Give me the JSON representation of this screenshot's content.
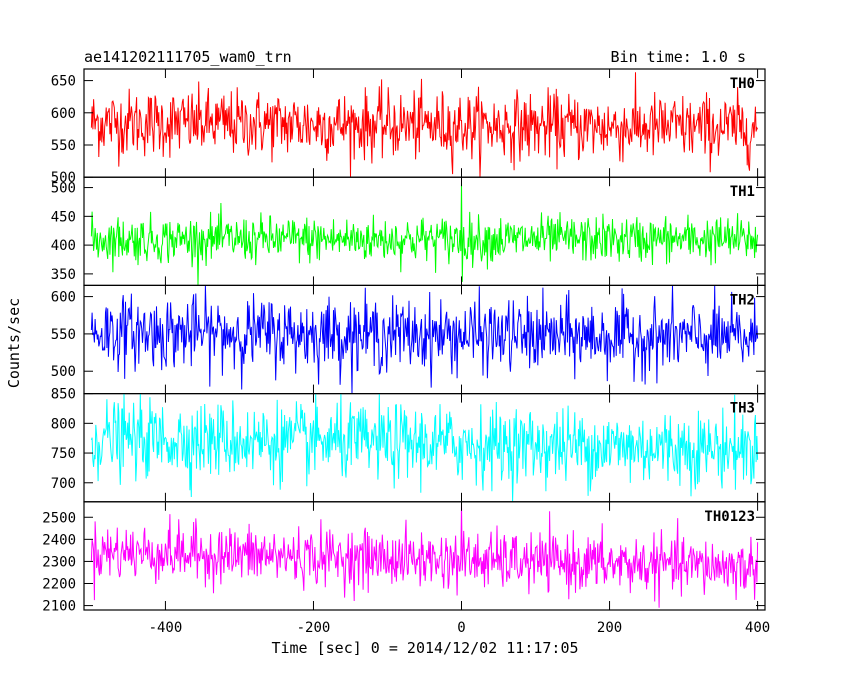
{
  "header": {
    "left_title": "ae141202111705_wam0_trn",
    "right_title": "Bin time: 1.0 s"
  },
  "chart_data": {
    "type": "line",
    "title": "ae141202111705_wam0_trn",
    "bin_time": "Bin time: 1.0 s",
    "xlabel": "Time [sec] 0 = 2014/12/02 11:17:05",
    "ylabel": "Counts/sec",
    "xlim": [
      -510,
      410
    ],
    "xticks": [
      -400,
      -200,
      0,
      200,
      400
    ],
    "x_data_range": [
      -500,
      400
    ],
    "bin_seconds": 1.0,
    "panels": [
      {
        "name": "TH0",
        "color": "#ff0000",
        "ylim": [
          500,
          668
        ],
        "yticks": [
          500,
          550,
          600,
          650
        ],
        "approx_mean": 580,
        "approx_noise_sd": 26,
        "trend_per_sec": -0.01,
        "spikes": []
      },
      {
        "name": "TH1",
        "color": "#00ff00",
        "ylim": [
          330,
          518
        ],
        "yticks": [
          350,
          400,
          450,
          500
        ],
        "approx_mean": 410,
        "approx_noise_sd": 20,
        "trend_per_sec": 0,
        "spikes": [
          {
            "x": 0,
            "y": 512
          },
          {
            "x": 1,
            "y": 336
          }
        ]
      },
      {
        "name": "TH2",
        "color": "#0000ff",
        "ylim": [
          470,
          615
        ],
        "yticks": [
          500,
          550,
          600
        ],
        "approx_mean": 548,
        "approx_noise_sd": 24,
        "trend_per_sec": -0.01,
        "spikes": []
      },
      {
        "name": "TH3",
        "color": "#00ffff",
        "ylim": [
          668,
          850
        ],
        "yticks": [
          700,
          750,
          800,
          850
        ],
        "approx_mean": 765,
        "approx_noise_sd": 32,
        "trend_per_sec": -0.02,
        "spikes": []
      },
      {
        "name": "TH0123",
        "color": "#ff00ff",
        "ylim": [
          2080,
          2570
        ],
        "yticks": [
          2100,
          2200,
          2300,
          2400,
          2500
        ],
        "approx_mean": 2305,
        "approx_noise_sd": 65,
        "trend_per_sec": -0.08,
        "spikes": [
          {
            "x": 0,
            "y": 2565
          }
        ]
      }
    ]
  }
}
